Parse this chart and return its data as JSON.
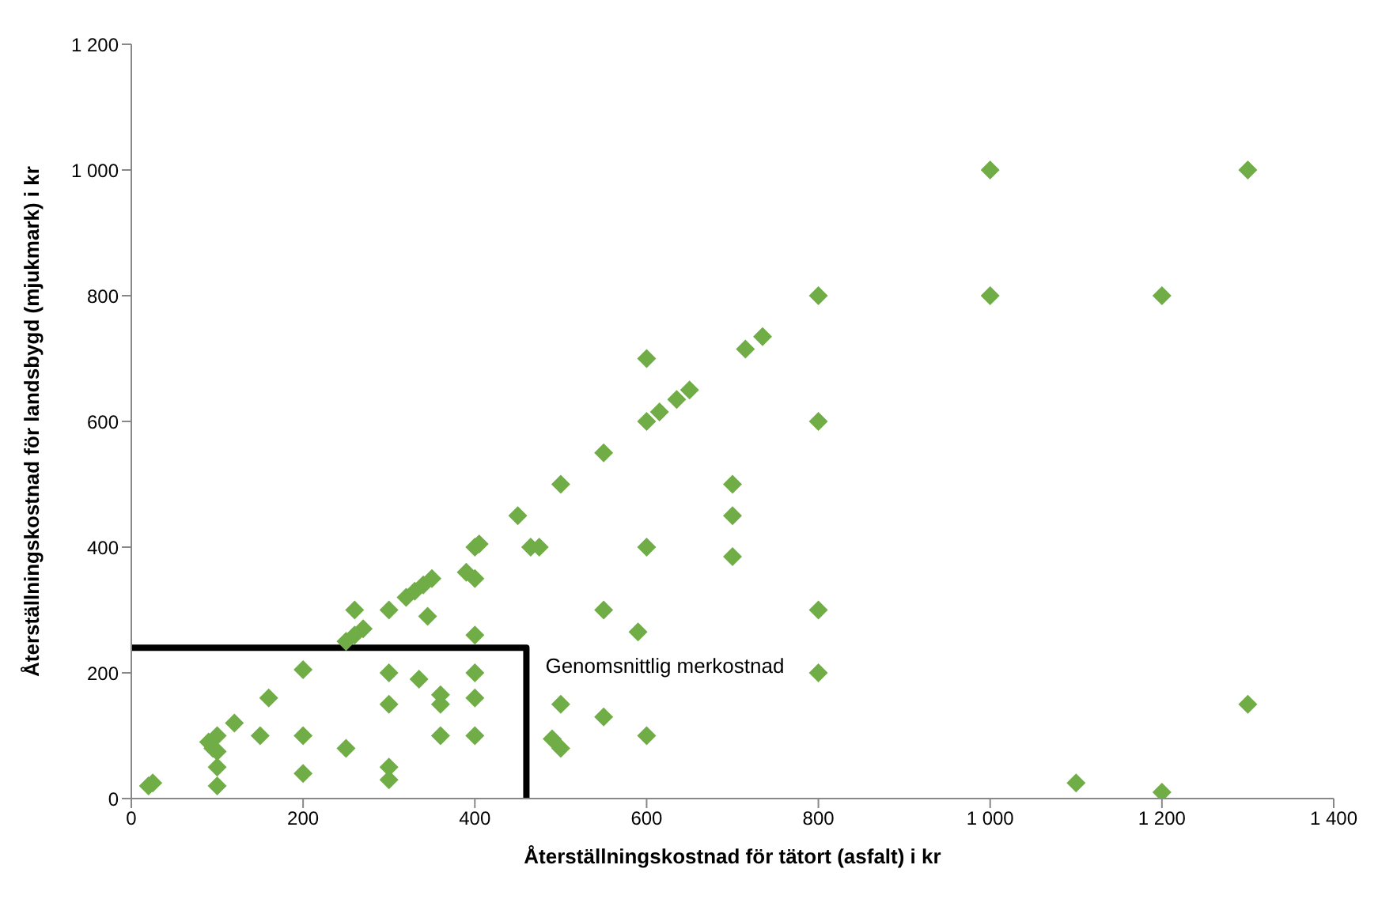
{
  "chart_data": {
    "type": "scatter",
    "xlabel": "Återställningskostnad för tätort (asfalt) i kr",
    "ylabel": "Återställningskostnad för landsbygd (mjukmark) i kr",
    "xlim": [
      0,
      1400
    ],
    "xticks": [
      0,
      200,
      400,
      600,
      800,
      {
        "value": 1000,
        "label": "1 000"
      },
      {
        "value": 1200,
        "label": "1 200"
      },
      {
        "value": 1400,
        "label": "1 400"
      }
    ],
    "ylim": [
      0,
      1200
    ],
    "yticks": [
      0,
      200,
      400,
      600,
      800,
      {
        "value": 1000,
        "label": "1 000"
      },
      {
        "value": 1200,
        "label": "1 200"
      }
    ],
    "marker": "diamond",
    "series": [
      {
        "color": "#70ad47",
        "x": [
          20,
          25,
          90,
          95,
          100,
          100,
          100,
          100,
          120,
          150,
          160,
          200,
          200,
          200,
          250,
          250,
          260,
          260,
          270,
          300,
          300,
          300,
          300,
          300,
          320,
          330,
          340,
          350,
          335,
          345,
          360,
          360,
          360,
          390,
          400,
          405,
          400,
          400,
          400,
          400,
          400,
          450,
          465,
          475,
          490,
          500,
          500,
          500,
          550,
          550,
          550,
          590,
          600,
          600,
          600,
          600,
          615,
          635,
          650,
          715,
          735,
          700,
          700,
          700,
          800,
          800,
          800,
          800,
          1000,
          1000,
          1100,
          1200,
          1200,
          1300,
          1300
        ],
        "values": [
          20,
          25,
          90,
          80,
          100,
          75,
          50,
          20,
          120,
          100,
          160,
          205,
          100,
          40,
          80,
          250,
          300,
          260,
          270,
          300,
          200,
          150,
          50,
          30,
          320,
          330,
          340,
          350,
          190,
          290,
          165,
          150,
          100,
          360,
          400,
          405,
          350,
          260,
          200,
          160,
          100,
          450,
          400,
          400,
          95,
          500,
          150,
          80,
          550,
          300,
          130,
          265,
          700,
          600,
          400,
          100,
          615,
          635,
          650,
          715,
          735,
          500,
          450,
          385,
          800,
          600,
          300,
          200,
          1000,
          800,
          25,
          800,
          10,
          1000,
          150
        ]
      },
      {
        "type": "line",
        "name": "Genomsnittlig merkostnad",
        "color": "#000000",
        "x": [
          0,
          460,
          460
        ],
        "values": [
          240,
          240,
          0
        ],
        "marker": "none"
      }
    ]
  }
}
